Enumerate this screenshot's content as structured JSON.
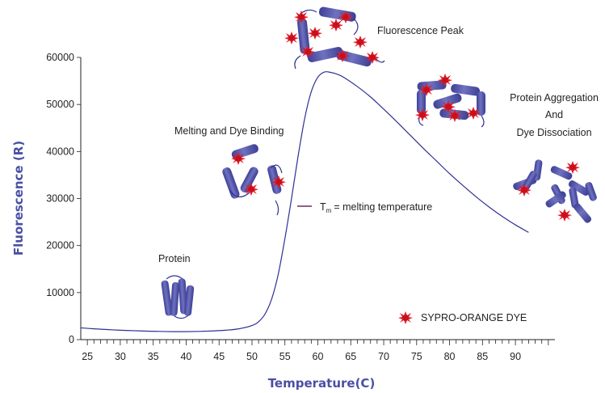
{
  "chart_data": {
    "type": "line",
    "title": "",
    "xlabel": "Temperature(C)",
    "ylabel": "Fluorescence (R)",
    "xlim": [
      24,
      96
    ],
    "ylim": [
      0,
      60000
    ],
    "x_ticks": [
      25,
      30,
      35,
      40,
      45,
      50,
      55,
      60,
      65,
      70,
      75,
      80,
      85,
      90
    ],
    "y_ticks": [
      0,
      10000,
      20000,
      30000,
      40000,
      50000,
      60000
    ],
    "grid": false,
    "series": [
      {
        "color": "#2e3192",
        "x": [
          24,
          26,
          28,
          30,
          32,
          34,
          36,
          38,
          40,
          42,
          44,
          46,
          48,
          50,
          51,
          52,
          53,
          54,
          55,
          56,
          57,
          58,
          59,
          60,
          61,
          62,
          63,
          64,
          66,
          68,
          70,
          72,
          74,
          76,
          78,
          80,
          82,
          84,
          86,
          88,
          90,
          92
        ],
        "y": [
          2500,
          2300,
          2150,
          2000,
          1900,
          1800,
          1750,
          1700,
          1700,
          1750,
          1850,
          2000,
          2300,
          3000,
          3800,
          5500,
          8700,
          14000,
          21500,
          30000,
          39000,
          47000,
          52700,
          55800,
          56900,
          56800,
          56400,
          55700,
          53800,
          51600,
          49000,
          46300,
          43500,
          40700,
          38000,
          35300,
          32800,
          30400,
          28200,
          26200,
          24400,
          22800
        ]
      }
    ]
  },
  "annotations": {
    "fluorescence_peak": "Fluorescence Peak",
    "melting_dye_binding": "Melting and Dye Binding",
    "protein": "Protein",
    "aggregation_line1": "Protein Aggregation",
    "aggregation_line2": "And",
    "aggregation_line3": "Dye Dissociation",
    "tm_symbol": "T",
    "tm_subscript": "m",
    "tm_text": "= melting temperature",
    "legend_dye": "SYPRO-ORANGE DYE"
  },
  "colors": {
    "curve": "#2e3192",
    "axis_title": "#4a4fa3",
    "protein": "#5457a8",
    "dye": "#e01e2a",
    "tm_marker": "#6b2d5c"
  }
}
